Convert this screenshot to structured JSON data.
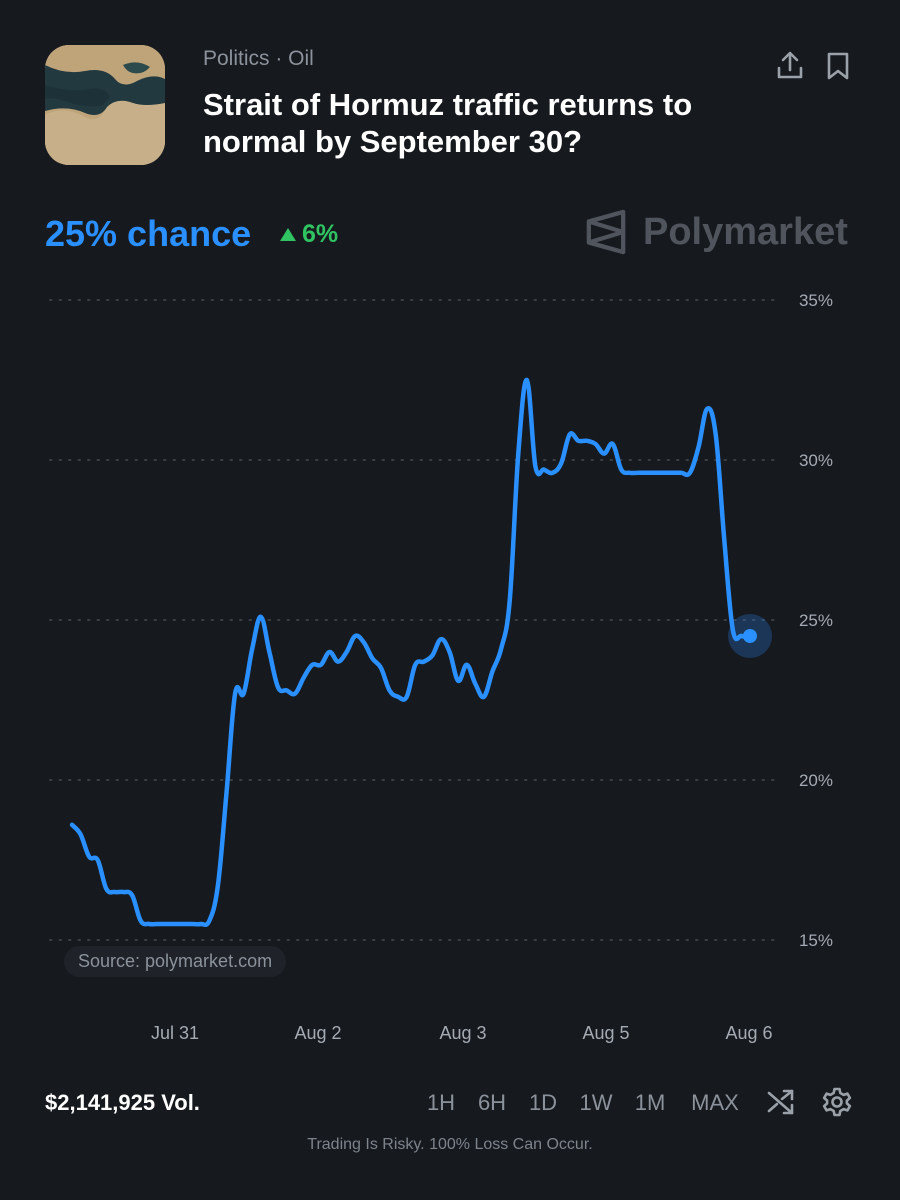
{
  "header": {
    "category": "Politics · Oil",
    "title": "Strait of Hormuz traffic returns to normal by September 30?"
  },
  "summary": {
    "chance": "25% chance",
    "delta": "6%",
    "delta_color": "#2fc461",
    "accent_color": "#2a90ff"
  },
  "brand": {
    "name": "Polymarket"
  },
  "source": "Source: polymarket.com",
  "chart_data": {
    "type": "line",
    "ylim": [
      15,
      35
    ],
    "y_ticks": [
      "35%",
      "30%",
      "25%",
      "20%",
      "15%"
    ],
    "x_ticks": [
      "Jul 31",
      "Aug 2",
      "Aug 3",
      "Aug 5",
      "Aug 6"
    ],
    "grid": true,
    "series": [
      {
        "color": "#2a90ff",
        "values": [
          18.6,
          18.3,
          17.6,
          17.5,
          16.6,
          16.5,
          16.5,
          16.4,
          15.6,
          15.5,
          15.5,
          15.5,
          15.5,
          15.5,
          15.5,
          15.5,
          15.6,
          16.7,
          19.6,
          22.7,
          22.7,
          24.1,
          25.1,
          24.0,
          22.9,
          22.8,
          22.7,
          23.2,
          23.6,
          23.6,
          24.0,
          23.7,
          24.0,
          24.5,
          24.3,
          23.8,
          23.5,
          22.8,
          22.6,
          22.6,
          23.6,
          23.7,
          23.9,
          24.4,
          24.0,
          23.1,
          23.6,
          23.0,
          22.6,
          23.4,
          24.1,
          25.6,
          30.2,
          32.5,
          29.8,
          29.7,
          29.6,
          29.9,
          30.8,
          30.6,
          30.6,
          30.5,
          30.2,
          30.5,
          29.7,
          29.6,
          29.6,
          29.6,
          29.6,
          29.6,
          29.6,
          29.6,
          29.6,
          30.4,
          31.6,
          30.8,
          27.5,
          24.7,
          24.5,
          24.5
        ]
      }
    ]
  },
  "footer": {
    "volume": "$2,141,925 Vol.",
    "ranges": [
      "1H",
      "6H",
      "1D",
      "1W",
      "1M",
      "MAX"
    ],
    "disclaimer": "Trading Is Risky. 100% Loss Can Occur."
  },
  "icons": [
    "share-icon",
    "bookmark-icon",
    "shuffle-icon",
    "gear-icon",
    "polymarket-logo-icon",
    "market-thumbnail"
  ]
}
